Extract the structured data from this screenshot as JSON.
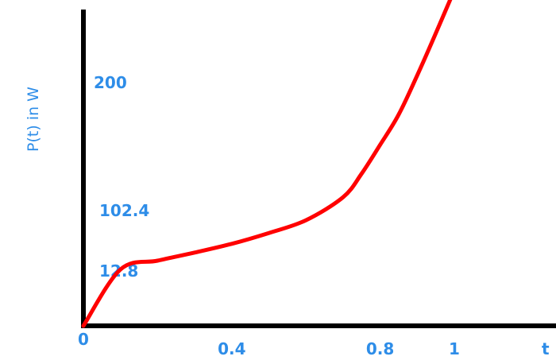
{
  "chart_data": {
    "type": "line",
    "ylabel": "P(t) in W",
    "xlabel": "t",
    "x_ticks": [
      {
        "value": 0,
        "label": "0"
      },
      {
        "value": 0.4,
        "label": "0.4"
      },
      {
        "value": 0.8,
        "label": "0.8"
      },
      {
        "value": 1,
        "label": "1"
      }
    ],
    "y_ticks": [
      {
        "value": 12.8,
        "label": "12.8"
      },
      {
        "value": 102.4,
        "label": "102.4"
      },
      {
        "value": 200,
        "label": "200"
      }
    ],
    "series": [
      {
        "color": "#ff0000",
        "x": [
          0,
          0.1,
          0.2,
          0.3,
          0.4,
          0.5,
          0.6,
          0.7,
          0.75,
          0.8,
          0.85,
          0.9,
          0.95,
          1.0
        ],
        "y": [
          0,
          14,
          27,
          39,
          52,
          68,
          87,
          112,
          130,
          152,
          175,
          205,
          237,
          270
        ]
      }
    ],
    "axis_color": "#000000",
    "text_color": "#2e8de8",
    "grid": false,
    "legend": "none"
  }
}
